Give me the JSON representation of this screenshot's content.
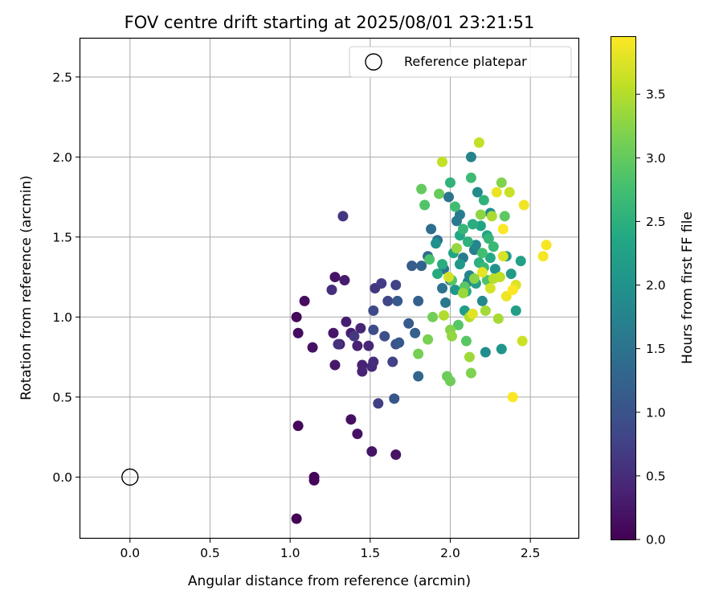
{
  "chart_data": {
    "type": "scatter",
    "title": "FOV centre drift starting at 2025/08/01 23:21:51",
    "xlabel": "Angular distance from reference (arcmin)",
    "ylabel": "Rotation from reference (arcmin)",
    "xlim": [
      -0.31,
      2.8
    ],
    "ylim": [
      -0.38,
      2.74
    ],
    "xticks": [
      0.0,
      0.5,
      1.0,
      1.5,
      2.0,
      2.5
    ],
    "yticks": [
      0.0,
      0.5,
      1.0,
      1.5,
      2.0,
      2.5
    ],
    "grid": true,
    "legend": {
      "location": "top-right",
      "entries": [
        "Reference platepar"
      ]
    },
    "colorbar": {
      "label": "Hours from first FF file",
      "colormap": "viridis",
      "range": [
        0,
        3.95
      ],
      "ticks": [
        0.0,
        0.5,
        1.0,
        1.5,
        2.0,
        2.5,
        3.0,
        3.5
      ]
    },
    "reference_point": {
      "x": 0.0,
      "y": 0.0
    },
    "series": [
      {
        "points": [
          [
            1.04,
            -0.26,
            0.0
          ],
          [
            1.15,
            0.0,
            0.05
          ],
          [
            1.15,
            -0.02,
            0.06
          ],
          [
            1.05,
            0.32,
            0.08
          ],
          [
            1.38,
            0.36,
            0.15
          ],
          [
            1.42,
            0.27,
            0.18
          ],
          [
            1.66,
            0.14,
            0.2
          ],
          [
            1.51,
            0.16,
            0.22
          ],
          [
            1.04,
            1.0,
            0.1
          ],
          [
            1.05,
            0.9,
            0.12
          ],
          [
            1.09,
            1.1,
            0.15
          ],
          [
            1.14,
            0.81,
            0.18
          ],
          [
            1.28,
            1.25,
            0.22
          ],
          [
            1.27,
            0.9,
            0.24
          ],
          [
            1.28,
            0.7,
            0.26
          ],
          [
            1.31,
            0.83,
            0.28
          ],
          [
            1.34,
            1.23,
            0.3
          ],
          [
            1.35,
            0.97,
            0.32
          ],
          [
            1.38,
            0.9,
            0.34
          ],
          [
            1.42,
            0.82,
            0.36
          ],
          [
            1.45,
            0.7,
            0.38
          ],
          [
            1.45,
            0.66,
            0.4
          ],
          [
            1.44,
            0.93,
            0.42
          ],
          [
            1.49,
            0.82,
            0.44
          ],
          [
            1.51,
            0.69,
            0.46
          ],
          [
            1.52,
            0.72,
            0.5
          ],
          [
            1.26,
            1.17,
            0.52
          ],
          [
            1.3,
            0.83,
            0.55
          ],
          [
            1.33,
            1.63,
            0.6
          ],
          [
            1.4,
            0.88,
            0.64
          ],
          [
            1.53,
            1.18,
            0.66
          ],
          [
            1.57,
            1.21,
            0.7
          ],
          [
            1.55,
            0.46,
            0.72
          ],
          [
            1.64,
            0.72,
            0.76
          ],
          [
            1.66,
            1.2,
            0.8
          ],
          [
            1.61,
            1.1,
            0.84
          ],
          [
            1.52,
            1.04,
            0.88
          ],
          [
            1.52,
            0.92,
            0.92
          ],
          [
            1.59,
            0.88,
            0.95
          ],
          [
            1.66,
            0.83,
            1.0
          ],
          [
            1.65,
            0.49,
            1.05
          ],
          [
            1.68,
            0.84,
            1.08
          ],
          [
            1.67,
            1.1,
            1.1
          ],
          [
            1.74,
            0.96,
            1.12
          ],
          [
            1.76,
            1.32,
            1.15
          ],
          [
            1.78,
            0.9,
            1.18
          ],
          [
            1.8,
            1.1,
            1.2
          ],
          [
            1.82,
            1.32,
            1.25
          ],
          [
            1.8,
            0.63,
            1.3
          ],
          [
            1.86,
            1.38,
            1.35
          ],
          [
            1.88,
            1.55,
            1.4
          ],
          [
            1.92,
            1.48,
            1.45
          ],
          [
            1.95,
            1.18,
            1.48
          ],
          [
            1.96,
            1.3,
            1.52
          ],
          [
            2.0,
            1.23,
            1.55
          ],
          [
            2.04,
            1.6,
            1.6
          ],
          [
            2.08,
            1.37,
            1.65
          ],
          [
            2.11,
            1.22,
            1.7
          ],
          [
            2.13,
            2.0,
            1.75
          ],
          [
            2.16,
            1.45,
            1.8
          ],
          [
            2.2,
            1.1,
            1.85
          ],
          [
            2.22,
            0.78,
            1.9
          ],
          [
            2.25,
            1.65,
            1.95
          ],
          [
            2.28,
            1.3,
            2.0
          ],
          [
            2.32,
            0.8,
            2.05
          ],
          [
            2.35,
            1.38,
            2.1
          ],
          [
            2.38,
            1.27,
            2.15
          ],
          [
            2.41,
            1.04,
            2.2
          ],
          [
            2.44,
            1.35,
            2.25
          ],
          [
            2.02,
            1.4,
            2.3
          ],
          [
            2.06,
            1.51,
            2.35
          ],
          [
            2.1,
            1.16,
            2.4
          ],
          [
            2.14,
            1.58,
            2.45
          ],
          [
            2.18,
            1.34,
            2.5
          ],
          [
            2.21,
            1.73,
            2.55
          ],
          [
            2.24,
            1.49,
            2.6
          ],
          [
            2.27,
            1.44,
            2.65
          ],
          [
            1.99,
            1.75,
            1.5
          ],
          [
            2.06,
            1.64,
            1.62
          ],
          [
            2.12,
            1.26,
            1.78
          ],
          [
            2.17,
            1.78,
            1.88
          ],
          [
            1.91,
            1.46,
            1.98
          ],
          [
            2.03,
            1.17,
            2.08
          ],
          [
            2.09,
            1.04,
            2.18
          ],
          [
            2.19,
            1.57,
            2.28
          ],
          [
            2.25,
            1.37,
            2.38
          ],
          [
            1.97,
            1.09,
            1.58
          ],
          [
            2.15,
            1.42,
            1.68
          ],
          [
            1.95,
            1.33,
            2.45
          ],
          [
            2.0,
            1.84,
            2.55
          ],
          [
            2.08,
            1.55,
            2.6
          ],
          [
            2.13,
            1.87,
            2.7
          ],
          [
            2.2,
            1.4,
            2.75
          ],
          [
            1.87,
            1.36,
            2.8
          ],
          [
            1.84,
            1.7,
            2.85
          ],
          [
            2.01,
            1.23,
            2.88
          ],
          [
            2.05,
            0.95,
            2.9
          ],
          [
            2.1,
            0.85,
            2.92
          ],
          [
            2.34,
            1.63,
            2.95
          ],
          [
            1.82,
            1.8,
            3.0
          ],
          [
            1.93,
            1.77,
            3.02
          ],
          [
            1.98,
            0.63,
            3.05
          ],
          [
            2.0,
            0.6,
            3.08
          ],
          [
            1.89,
            1.0,
            3.1
          ],
          [
            1.8,
            0.77,
            3.12
          ],
          [
            1.86,
            0.86,
            3.15
          ],
          [
            2.13,
            0.65,
            3.18
          ],
          [
            2.32,
            1.84,
            3.2
          ],
          [
            2.0,
            0.92,
            3.22
          ],
          [
            2.15,
            1.24,
            3.25
          ],
          [
            2.19,
            1.64,
            3.28
          ],
          [
            2.01,
            0.88,
            3.3
          ],
          [
            2.04,
            1.43,
            3.32
          ],
          [
            2.08,
            1.15,
            3.35
          ],
          [
            2.12,
            0.75,
            3.38
          ],
          [
            2.22,
            1.04,
            3.4
          ],
          [
            2.3,
            0.99,
            3.42
          ],
          [
            2.26,
            1.63,
            3.45
          ],
          [
            1.96,
            1.01,
            3.48
          ],
          [
            2.12,
            1.0,
            3.5
          ],
          [
            2.27,
            1.24,
            3.52
          ],
          [
            2.31,
            1.25,
            3.55
          ],
          [
            1.95,
            1.97,
            3.58
          ],
          [
            2.18,
            2.09,
            3.6
          ],
          [
            2.37,
            1.78,
            3.62
          ],
          [
            2.45,
            0.85,
            3.65
          ],
          [
            1.99,
            1.25,
            3.68
          ],
          [
            2.25,
            1.18,
            3.7
          ],
          [
            2.33,
            1.38,
            3.72
          ],
          [
            2.41,
            1.2,
            3.75
          ],
          [
            2.14,
            1.02,
            3.78
          ],
          [
            2.2,
            1.28,
            3.8
          ],
          [
            2.29,
            1.78,
            3.82
          ],
          [
            2.35,
            1.13,
            3.85
          ],
          [
            2.46,
            1.7,
            3.87
          ],
          [
            2.58,
            1.38,
            3.9
          ],
          [
            2.6,
            1.45,
            3.92
          ],
          [
            2.39,
            0.5,
            3.94
          ],
          [
            2.39,
            1.17,
            3.95
          ],
          [
            2.33,
            1.55,
            3.93
          ],
          [
            2.06,
            1.33,
            2.12
          ],
          [
            2.16,
            1.21,
            2.22
          ],
          [
            2.23,
            1.51,
            2.32
          ],
          [
            1.92,
            1.27,
            2.42
          ],
          [
            2.11,
            1.47,
            2.52
          ],
          [
            2.21,
            1.31,
            2.62
          ],
          [
            2.03,
            1.69,
            2.72
          ],
          [
            2.23,
            1.23,
            2.82
          ],
          [
            2.09,
            1.19,
            2.92
          ]
        ]
      }
    ]
  }
}
